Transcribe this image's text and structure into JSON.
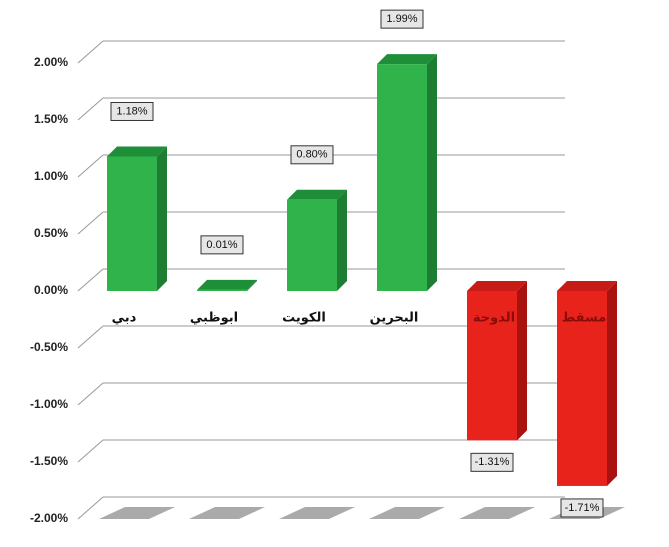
{
  "chart_data": {
    "type": "bar3d",
    "categories": [
      "دبي",
      "ابوظبي",
      "الكويت",
      "البحرين",
      "الدوحة",
      "مسقط"
    ],
    "values": [
      1.18,
      0.01,
      0.8,
      1.99,
      -1.31,
      -1.71
    ],
    "value_labels": [
      "1.18%",
      "0.01%",
      "0.80%",
      "1.99%",
      "-1.31%",
      "-1.71%"
    ],
    "positive_color": "#2fb34a",
    "negative_color": "#e8231c",
    "ylim": [
      -2,
      2
    ],
    "yticks": [
      {
        "value": 2,
        "label": "2.00%"
      },
      {
        "value": 1.5,
        "label": "1.50%"
      },
      {
        "value": 1,
        "label": "1.00%"
      },
      {
        "value": 0.5,
        "label": "0.50%"
      },
      {
        "value": 0,
        "label": "0.00%"
      },
      {
        "value": -0.5,
        "label": "-0.50%"
      },
      {
        "value": -1,
        "label": "-1.00%"
      },
      {
        "value": -1.5,
        "label": "-1.50%"
      },
      {
        "value": -2,
        "label": "-2.00%"
      }
    ],
    "grid": true
  }
}
